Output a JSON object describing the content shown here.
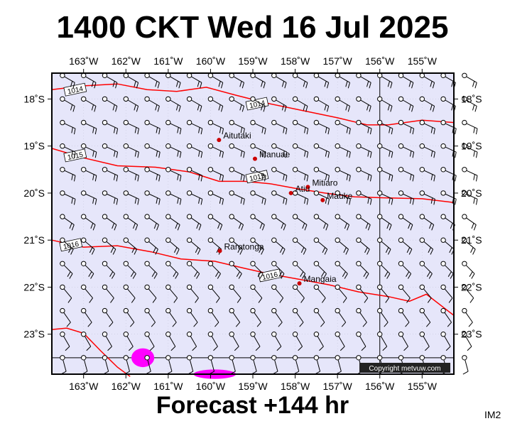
{
  "title": "1400 CKT Wed 16 Jul 2025",
  "subtitle": "Forecast +144 hr",
  "corner_code": "IM2",
  "copyright": "Copyright metvuw.com",
  "colors": {
    "ocean": "#e6e6fa",
    "isobar": "#ff0000",
    "town": "#cc0000",
    "precip": "#ff00ff",
    "frame": "#000000"
  },
  "map": {
    "lon_range": [
      -163.75,
      -154.25
    ],
    "lat_range": [
      -23.85,
      -17.45
    ],
    "lon_ticks": [
      {
        "lon": -163,
        "label": "163˚W"
      },
      {
        "lon": -162,
        "label": "162˚W"
      },
      {
        "lon": -161,
        "label": "161˚W"
      },
      {
        "lon": -160,
        "label": "160˚W"
      },
      {
        "lon": -159,
        "label": "159˚W"
      },
      {
        "lon": -158,
        "label": "158˚W"
      },
      {
        "lon": -157,
        "label": "157˚W"
      },
      {
        "lon": -156,
        "label": "156˚W"
      },
      {
        "lon": -155,
        "label": "155˚W"
      }
    ],
    "lat_ticks": [
      {
        "lat": -18,
        "label": "18˚S"
      },
      {
        "lat": -19,
        "label": "19˚S"
      },
      {
        "lat": -20,
        "label": "20˚S"
      },
      {
        "lat": -21,
        "label": "21˚S"
      },
      {
        "lat": -22,
        "label": "22˚S"
      },
      {
        "lat": -23,
        "label": "23˚S"
      }
    ]
  },
  "isobars": [
    {
      "label": "1014",
      "label_pos": [
        -163.2,
        -17.8
      ],
      "label_pos2": [
        -158.9,
        -18.1
      ],
      "path": [
        [
          -163.75,
          -17.8
        ],
        [
          -163,
          -17.72
        ],
        [
          -162.2,
          -17.68
        ],
        [
          -161.5,
          -17.8
        ],
        [
          -160.8,
          -17.84
        ],
        [
          -160.1,
          -17.75
        ],
        [
          -159.4,
          -17.92
        ],
        [
          -158.6,
          -18.1
        ],
        [
          -157.8,
          -18.25
        ],
        [
          -157,
          -18.4
        ],
        [
          -156.3,
          -18.55
        ],
        [
          -155.8,
          -18.55
        ],
        [
          -155,
          -18.45
        ],
        [
          -154.25,
          -18.5
        ]
      ]
    },
    {
      "label": "1015",
      "label_pos": [
        -163.2,
        -19.2
      ],
      "label_pos2": [
        -158.9,
        -19.65
      ],
      "path": [
        [
          -163.75,
          -19.05
        ],
        [
          -163,
          -19.25
        ],
        [
          -162.2,
          -19.42
        ],
        [
          -161.3,
          -19.45
        ],
        [
          -160.5,
          -19.55
        ],
        [
          -159.8,
          -19.75
        ],
        [
          -159.2,
          -19.75
        ],
        [
          -158.6,
          -19.8
        ],
        [
          -158,
          -19.9
        ],
        [
          -157.3,
          -20.0
        ],
        [
          -156.6,
          -20.08
        ],
        [
          -155.9,
          -20.1
        ],
        [
          -155,
          -20.12
        ],
        [
          -154.25,
          -20.2
        ]
      ]
    },
    {
      "label": "1016",
      "label_pos": [
        -163.3,
        -21.1
      ],
      "label_pos2": [
        -158.6,
        -21.75
      ],
      "path": [
        [
          -163.75,
          -21.0
        ],
        [
          -163,
          -21.15
        ],
        [
          -162.2,
          -21.12
        ],
        [
          -161.4,
          -21.25
        ],
        [
          -160.7,
          -21.4
        ],
        [
          -159.9,
          -21.45
        ],
        [
          -159.2,
          -21.6
        ],
        [
          -158.6,
          -21.72
        ],
        [
          -157.8,
          -21.85
        ],
        [
          -157.2,
          -21.95
        ],
        [
          -156.5,
          -22.1
        ],
        [
          -155.8,
          -22.2
        ],
        [
          -155.3,
          -22.3
        ],
        [
          -154.9,
          -22.15
        ],
        [
          -154.25,
          -22.6
        ]
      ]
    },
    {
      "label": "",
      "label_pos": null,
      "label_pos2": null,
      "path": [
        [
          -163.75,
          -22.9
        ],
        [
          -163.4,
          -22.87
        ],
        [
          -163.0,
          -22.98
        ],
        [
          -162.6,
          -23.35
        ],
        [
          -162.2,
          -23.7
        ],
        [
          -161.9,
          -23.9
        ]
      ]
    }
  ],
  "towns": [
    {
      "name": "Aitutaki",
      "lon": -159.8,
      "lat": -18.87
    },
    {
      "name": "Manuae",
      "lon": -158.95,
      "lat": -19.27
    },
    {
      "name": "Mitiaro",
      "lon": -157.7,
      "lat": -19.87
    },
    {
      "name": "Atiu",
      "lon": -158.1,
      "lat": -20.0
    },
    {
      "name": "Mauke",
      "lon": -157.35,
      "lat": -20.15
    },
    {
      "name": "Rarotonga",
      "lon": -159.78,
      "lat": -21.23
    },
    {
      "name": "Mangaia",
      "lon": -157.9,
      "lat": -21.92
    }
  ],
  "precip_areas": [
    {
      "lon": -161.6,
      "lat": -23.5,
      "rx": 0.27,
      "ry": 0.2
    },
    {
      "lon": -159.9,
      "lat": -23.85,
      "rx": 0.5,
      "ry": 0.1
    }
  ],
  "wind": {
    "lon_start": -163.5,
    "lon_step": 0.5,
    "cols": 20,
    "rows": [
      {
        "lat": -17.5,
        "dir": 120,
        "flags": 2
      },
      {
        "lat": -18.0,
        "dir": 120,
        "flags": 2
      },
      {
        "lat": -18.5,
        "dir": 115,
        "flags": 2
      },
      {
        "lat": -19.0,
        "dir": 115,
        "flags": 2
      },
      {
        "lat": -19.5,
        "dir": 115,
        "flags": 2
      },
      {
        "lat": -20.0,
        "dir": 115,
        "flags": 2
      },
      {
        "lat": -20.5,
        "dir": 125,
        "flags": 2
      },
      {
        "lat": -21.0,
        "dir": 130,
        "flags": 2
      },
      {
        "lat": -21.5,
        "dir": 135,
        "flags": 2
      },
      {
        "lat": -22.0,
        "dir": 140,
        "flags": 1
      },
      {
        "lat": -22.5,
        "dir": 145,
        "flags": 1
      },
      {
        "lat": -23.0,
        "dir": 150,
        "flags": 1
      },
      {
        "lat": -23.5,
        "dir": 165,
        "flags": 1
      }
    ]
  }
}
